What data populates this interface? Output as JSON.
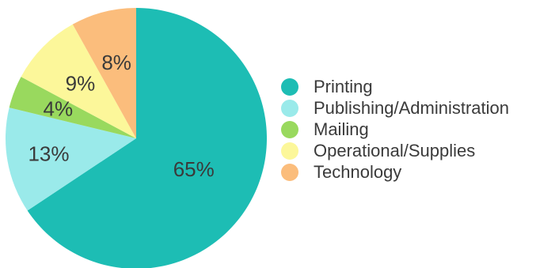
{
  "chart_data": {
    "type": "pie",
    "categories": [
      "Printing",
      "Publishing/Administration",
      "Mailing",
      "Operational/Supplies",
      "Technology"
    ],
    "values": [
      65,
      13,
      4,
      9,
      8
    ],
    "labels": [
      "65%",
      "13%",
      "4%",
      "9%",
      "8%"
    ],
    "colors": [
      "#1dbdb4",
      "#9aeaea",
      "#99d95e",
      "#fcf79a",
      "#fbbd7c"
    ],
    "legend_position": "right",
    "start": "top, clockwise"
  },
  "legend": {
    "items": [
      {
        "label": "Printing",
        "color": "#1dbdb4"
      },
      {
        "label": "Publishing/Administration",
        "color": "#9aeaea"
      },
      {
        "label": "Mailing",
        "color": "#99d95e"
      },
      {
        "label": "Operational/Supplies",
        "color": "#fcf79a"
      },
      {
        "label": "Technology",
        "color": "#fbbd7c"
      }
    ]
  }
}
